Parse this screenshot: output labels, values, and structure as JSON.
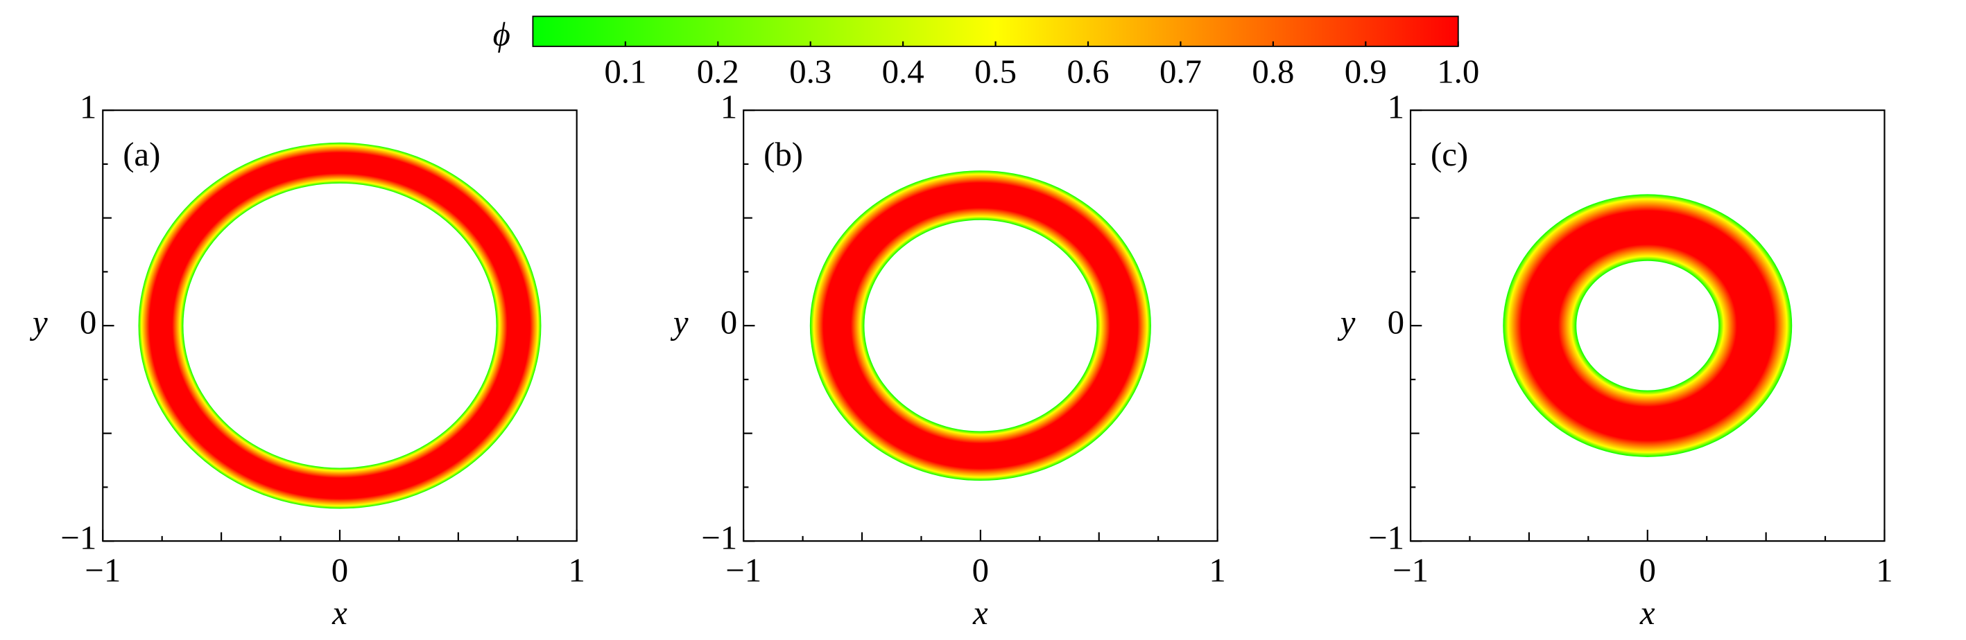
{
  "colorbar": {
    "label": "ϕ",
    "lim": [
      0,
      1
    ],
    "colors": [
      "#00ff00",
      "#ffff00",
      "#ff0000"
    ],
    "ticks": [
      0.1,
      0.2,
      0.3,
      0.4,
      0.5,
      0.6,
      0.7,
      0.8,
      0.9,
      {
        "value": 1,
        "label": "1.0"
      }
    ]
  },
  "chart_data": [
    {
      "type": "ring",
      "panel_label": "(a)",
      "xlabel": "x",
      "ylabel": "y",
      "xlim": [
        -1,
        1
      ],
      "ylim": [
        -1,
        1
      ],
      "xticks": [
        {
          "value": -1,
          "label": "−1"
        },
        0,
        1
      ],
      "yticks": [
        {
          "value": -1,
          "label": "−1"
        },
        0,
        1
      ],
      "minor_ticks": [
        -0.75,
        -0.5,
        -0.25,
        0.25,
        0.5,
        0.75
      ],
      "ring": {
        "inner_radius": 0.66,
        "outer_radius": 0.85
      }
    },
    {
      "type": "ring",
      "panel_label": "(b)",
      "xlabel": "x",
      "ylabel": "y",
      "xlim": [
        -1,
        1
      ],
      "ylim": [
        -1,
        1
      ],
      "xticks": [
        {
          "value": -1,
          "label": "−1"
        },
        0,
        1
      ],
      "yticks": [
        {
          "value": -1,
          "label": "−1"
        },
        0,
        1
      ],
      "minor_ticks": [
        -0.75,
        -0.5,
        -0.25,
        0.25,
        0.5,
        0.75
      ],
      "ring": {
        "inner_radius": 0.49,
        "outer_radius": 0.72
      }
    },
    {
      "type": "ring",
      "panel_label": "(c)",
      "xlabel": "x",
      "ylabel": "y",
      "xlim": [
        -1,
        1
      ],
      "ylim": [
        -1,
        1
      ],
      "xticks": [
        {
          "value": -1,
          "label": "−1"
        },
        0,
        1
      ],
      "yticks": [
        {
          "value": -1,
          "label": "−1"
        },
        0,
        1
      ],
      "minor_ticks": [
        -0.75,
        -0.5,
        -0.25,
        0.25,
        0.5,
        0.75
      ],
      "ring": {
        "inner_radius": 0.3,
        "outer_radius": 0.61
      }
    }
  ]
}
